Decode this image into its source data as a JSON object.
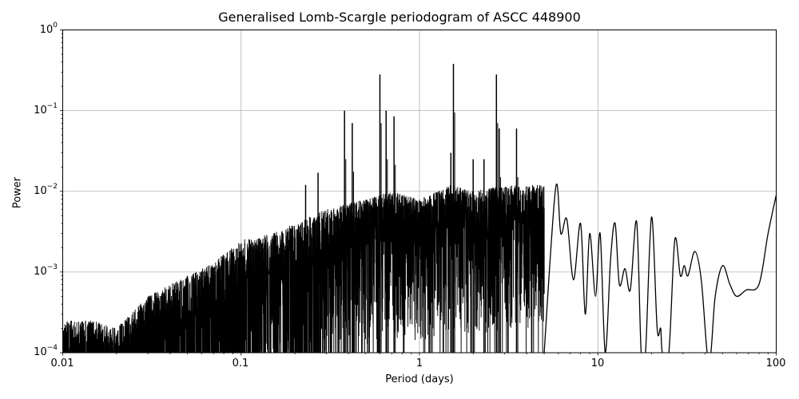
{
  "chart_data": {
    "type": "line",
    "title": "Generalised Lomb-Scargle periodogram of ASCC 448900",
    "xlabel": "Period (days)",
    "ylabel": "Power",
    "xscale": "log",
    "yscale": "log",
    "xlim": [
      0.01,
      100
    ],
    "ylim": [
      0.0001,
      1
    ],
    "grid": true,
    "legend": null,
    "x_ticks": [
      "0.01",
      "0.1",
      "1",
      "10",
      "100"
    ],
    "y_ticks": [
      {
        "base": "10",
        "exp": "0"
      },
      {
        "base": "10",
        "exp": "−1"
      },
      {
        "base": "10",
        "exp": "−2"
      },
      {
        "base": "10",
        "exp": "−3"
      },
      {
        "base": "10",
        "exp": "−4"
      }
    ],
    "noise_envelope": {
      "description": "Dense forest of peaks; approximate upper envelope of power vs period",
      "x": [
        0.01,
        0.015,
        0.02,
        0.03,
        0.05,
        0.07,
        0.1,
        0.15,
        0.2,
        0.3,
        0.5,
        0.7,
        1.0,
        1.5,
        2.0,
        3.0
      ],
      "y": [
        0.00025,
        0.00025,
        0.0002,
        0.0005,
        0.0009,
        0.0013,
        0.0025,
        0.003,
        0.004,
        0.006,
        0.008,
        0.01,
        0.008,
        0.012,
        0.01,
        0.012
      ]
    },
    "key_peaks": [
      {
        "period": 0.38,
        "power": 0.1
      },
      {
        "period": 0.42,
        "power": 0.07
      },
      {
        "period": 0.27,
        "power": 0.017
      },
      {
        "period": 0.23,
        "power": 0.012
      },
      {
        "period": 0.6,
        "power": 0.28
      },
      {
        "period": 0.65,
        "power": 0.1
      },
      {
        "period": 0.72,
        "power": 0.085
      },
      {
        "period": 1.55,
        "power": 0.38
      },
      {
        "period": 1.5,
        "power": 0.03
      },
      {
        "period": 2.0,
        "power": 0.025
      },
      {
        "period": 2.7,
        "power": 0.28
      },
      {
        "period": 2.8,
        "power": 0.06
      },
      {
        "period": 3.5,
        "power": 0.06
      },
      {
        "period": 2.3,
        "power": 0.025
      }
    ],
    "long_period_curve": {
      "description": "Smooth oscillating curve beyond ~5 days",
      "x": [
        5.0,
        5.8,
        6.2,
        6.7,
        7.3,
        8.0,
        8.5,
        9.0,
        9.7,
        10.3,
        11.0,
        11.8,
        12.5,
        13.2,
        14.2,
        15.2,
        16.5,
        17.5,
        18.5,
        20.0,
        21.5,
        22.5,
        23.0,
        25.0,
        27.0,
        29.0,
        30.5,
        32.0,
        35.0,
        38.0,
        41.0,
        43.0,
        45.5,
        50.0,
        55.0,
        60.0,
        68.0,
        80.0,
        90.0,
        100.0
      ],
      "y": [
        0.0001,
        0.011,
        0.003,
        0.0045,
        0.0008,
        0.004,
        0.0003,
        0.003,
        0.0005,
        0.003,
        0.0001,
        0.0015,
        0.004,
        0.0007,
        0.0011,
        0.0006,
        0.0042,
        0.0001,
        0.0001,
        0.0048,
        0.0002,
        0.0002,
        0.0001,
        0.0001,
        0.0025,
        0.0009,
        0.0012,
        0.0009,
        0.0018,
        0.0008,
        0.0001,
        0.0001,
        0.0005,
        0.0012,
        0.0007,
        0.0005,
        0.0006,
        0.0007,
        0.003,
        0.009
      ]
    }
  }
}
